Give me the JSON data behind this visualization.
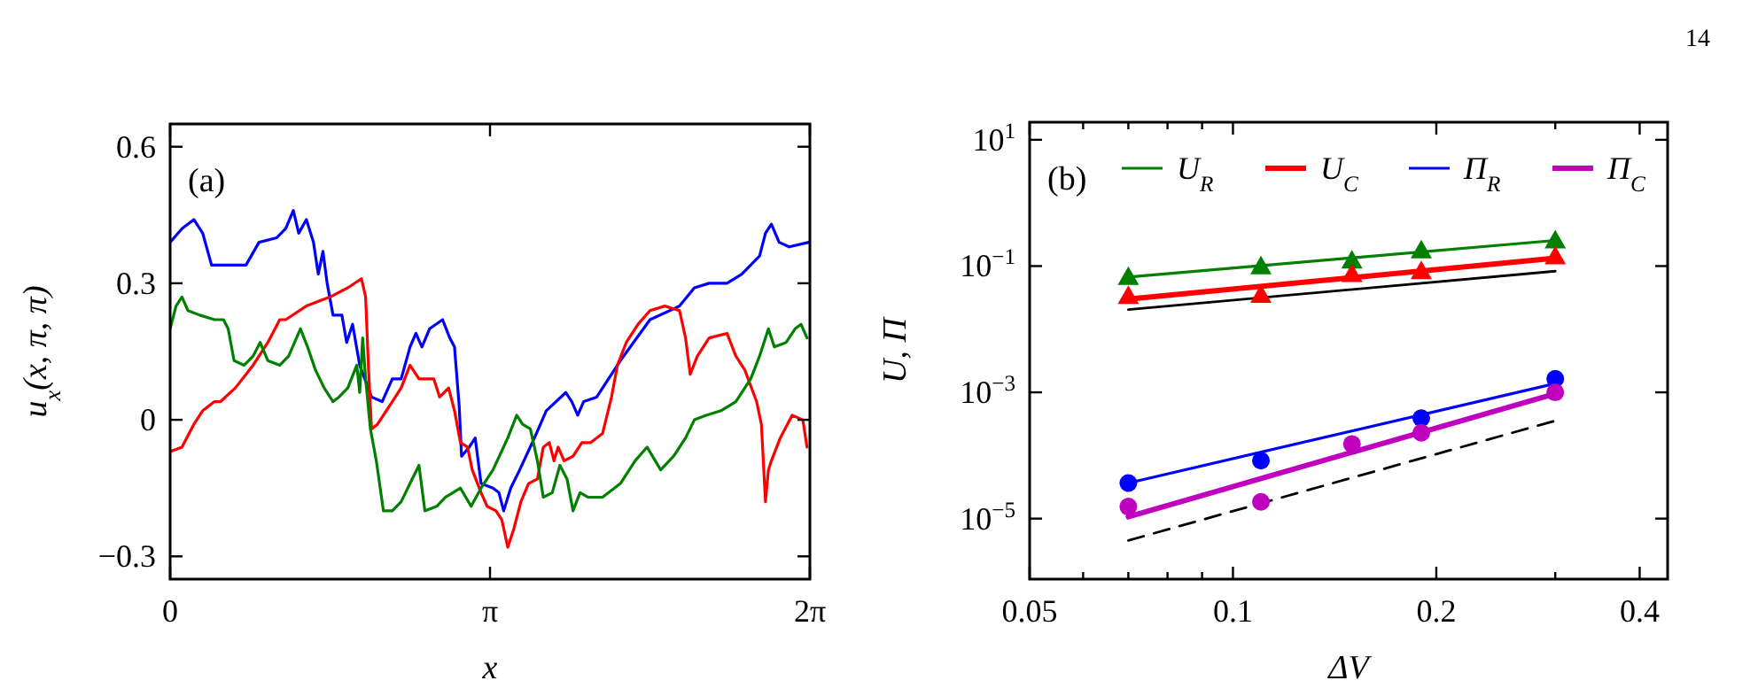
{
  "chart_data": [
    {
      "type": "line",
      "ylabel": "u$_{x}$(x, π, π)",
      "xlabel": "x",
      "annotations": [
        "(a)"
      ],
      "xlim": [
        0,
        6.2832
      ],
      "xticks": [
        {
          "value": 0,
          "label": "0"
        },
        {
          "value": 3.1416,
          "label": "π"
        },
        {
          "value": 6.2832,
          "label": "2π"
        }
      ],
      "ylim": [
        -0.35,
        0.65
      ],
      "yticks": [
        {
          "value": -0.3,
          "label": "−0.3"
        },
        0,
        0.3,
        0.6
      ],
      "series": [
        {
          "color": "#0000ff",
          "x": [
            0,
            0.116,
            0.233,
            0.32,
            0.407,
            0.64,
            0.745,
            0.873,
            1.047,
            1.135,
            1.21,
            1.263,
            1.338,
            1.408,
            1.455,
            1.501,
            1.542,
            1.6,
            1.687,
            1.734,
            1.792,
            1.862,
            1.978,
            2.083,
            2.182,
            2.269,
            2.356,
            2.414,
            2.473,
            2.548,
            2.676,
            2.746,
            2.793,
            2.839,
            2.862,
            2.938,
            2.996,
            3.054,
            3.171,
            3.229,
            3.276,
            3.345,
            3.433,
            3.578,
            3.694,
            3.886,
            3.945,
            4.003,
            4.061,
            4.189,
            4.422,
            4.713,
            5.003,
            5.149,
            5.294,
            5.469,
            5.614,
            5.789,
            5.847,
            5.905,
            5.981,
            6.08,
            6.272
          ],
          "values": [
            0.39,
            0.42,
            0.44,
            0.41,
            0.34,
            0.34,
            0.34,
            0.39,
            0.4,
            0.42,
            0.46,
            0.41,
            0.44,
            0.39,
            0.32,
            0.37,
            0.3,
            0.23,
            0.23,
            0.17,
            0.21,
            0.12,
            0.05,
            0.04,
            0.09,
            0.09,
            0.16,
            0.19,
            0.16,
            0.2,
            0.22,
            0.18,
            0.16,
            0.03,
            -0.08,
            -0.06,
            -0.04,
            -0.14,
            -0.15,
            -0.16,
            -0.2,
            -0.15,
            -0.11,
            -0.04,
            0.02,
            0.06,
            0.04,
            0.01,
            0.04,
            0.05,
            0.13,
            0.22,
            0.25,
            0.29,
            0.3,
            0.3,
            0.32,
            0.36,
            0.41,
            0.43,
            0.39,
            0.38,
            0.39
          ]
        },
        {
          "color": "#ff0000",
          "x": [
            0,
            0.116,
            0.233,
            0.32,
            0.436,
            0.495,
            0.64,
            0.815,
            0.96,
            1.077,
            1.135,
            1.338,
            1.571,
            1.745,
            1.879,
            1.92,
            1.949,
            1.978,
            2.036,
            2.182,
            2.269,
            2.356,
            2.444,
            2.531,
            2.589,
            2.647,
            2.735,
            2.793,
            2.851,
            2.921,
            2.967,
            3.054,
            3.113,
            3.2,
            3.258,
            3.316,
            3.375,
            3.445,
            3.52,
            3.607,
            3.665,
            3.724,
            3.77,
            3.811,
            3.869,
            3.957,
            4.044,
            4.131,
            4.247,
            4.335,
            4.393,
            4.48,
            4.596,
            4.713,
            4.858,
            5.003,
            5.062,
            5.108,
            5.178,
            5.294,
            5.469,
            5.556,
            5.643,
            5.76,
            5.807,
            5.847,
            5.876,
            5.905,
            5.992,
            6.109,
            6.214,
            6.255
          ],
          "values": [
            -0.07,
            -0.06,
            -0.01,
            0.02,
            0.04,
            0.04,
            0.07,
            0.12,
            0.17,
            0.22,
            0.22,
            0.25,
            0.27,
            0.29,
            0.31,
            0.27,
            0.11,
            -0.02,
            -0.01,
            0.04,
            0.07,
            0.12,
            0.09,
            0.09,
            0.09,
            0.05,
            0.07,
            0.02,
            -0.05,
            -0.06,
            -0.11,
            -0.16,
            -0.19,
            -0.2,
            -0.22,
            -0.28,
            -0.24,
            -0.18,
            -0.14,
            -0.13,
            -0.06,
            -0.05,
            -0.09,
            -0.06,
            -0.09,
            -0.08,
            -0.05,
            -0.05,
            -0.03,
            0.05,
            0.12,
            0.17,
            0.21,
            0.24,
            0.25,
            0.24,
            0.18,
            0.1,
            0.14,
            0.18,
            0.19,
            0.14,
            0.11,
            0.04,
            -0.01,
            -0.18,
            -0.11,
            -0.09,
            -0.04,
            0.01,
            0.0,
            -0.06
          ]
        },
        {
          "color": "#008000",
          "x": [
            0,
            0.058,
            0.116,
            0.175,
            0.291,
            0.436,
            0.524,
            0.57,
            0.628,
            0.727,
            0.815,
            0.884,
            0.96,
            1.077,
            1.164,
            1.28,
            1.35,
            1.426,
            1.513,
            1.6,
            1.658,
            1.745,
            1.833,
            1.862,
            1.891,
            1.92,
            1.967,
            2.025,
            2.095,
            2.182,
            2.269,
            2.356,
            2.444,
            2.502,
            2.618,
            2.705,
            2.851,
            2.956,
            3.054,
            3.171,
            3.316,
            3.404,
            3.462,
            3.538,
            3.607,
            3.665,
            3.753,
            3.828,
            3.898,
            3.957,
            4.026,
            4.102,
            4.247,
            4.422,
            4.567,
            4.684,
            4.818,
            4.945,
            5.062,
            5.149,
            5.265,
            5.41,
            5.556,
            5.702,
            5.789,
            5.876,
            5.934,
            6.05,
            6.138,
            6.196,
            6.255
          ],
          "values": [
            0.2,
            0.25,
            0.27,
            0.24,
            0.23,
            0.22,
            0.22,
            0.2,
            0.13,
            0.12,
            0.14,
            0.17,
            0.13,
            0.12,
            0.14,
            0.2,
            0.16,
            0.11,
            0.07,
            0.04,
            0.05,
            0.07,
            0.12,
            0.06,
            0.18,
            0.09,
            -0.02,
            -0.09,
            -0.2,
            -0.2,
            -0.18,
            -0.14,
            -0.1,
            -0.2,
            -0.19,
            -0.17,
            -0.15,
            -0.19,
            -0.15,
            -0.11,
            -0.04,
            0.01,
            -0.01,
            -0.02,
            -0.09,
            -0.17,
            -0.16,
            -0.1,
            -0.13,
            -0.2,
            -0.16,
            -0.17,
            -0.17,
            -0.14,
            -0.09,
            -0.06,
            -0.11,
            -0.08,
            -0.04,
            0.0,
            0.01,
            0.02,
            0.04,
            0.09,
            0.14,
            0.2,
            0.16,
            0.17,
            0.2,
            0.21,
            0.18
          ]
        }
      ]
    },
    {
      "type": "scatter",
      "ylabel": "U, Π",
      "xlabel": "ΔV",
      "log": "xy",
      "legend": "top",
      "annotations": [
        "(b)",
        "14"
      ],
      "xlim": [
        0.05,
        0.44
      ],
      "xticks": [
        0.05,
        {
          "value": 0.06,
          "label": null
        },
        {
          "value": 0.07,
          "label": null
        },
        {
          "value": 0.08,
          "label": null
        },
        {
          "value": 0.09,
          "label": null
        },
        0.1,
        0.2,
        {
          "value": 0.3,
          "label": null
        },
        0.4
      ],
      "ylim": [
        1.1e-06,
        19
      ],
      "yticks": [
        {
          "value": 10,
          "label": "10$^{1}$"
        },
        {
          "value": 0.1,
          "label": "10$^{−1}$"
        },
        {
          "value": 0.001,
          "label": "10$^{−3}$"
        },
        {
          "value": 1e-05,
          "label": "10$^{−5}$"
        }
      ],
      "series": [
        {
          "type": "line",
          "name": "U$_{R}$",
          "color": "#008000",
          "x": [
            0.07,
            0.3
          ],
          "values": [
            0.067,
            0.255
          ]
        },
        {
          "type": "line",
          "name": "U$_{C}$",
          "color": "#ff0000",
          "x": [
            0.07,
            0.3
          ],
          "values": [
            0.03,
            0.134
          ]
        },
        {
          "type": "line",
          "name": "Π$_{R}$",
          "color": "#0000ff",
          "x": [
            0.07,
            0.3
          ],
          "values": [
            3.66e-05,
            0.00138
          ]
        },
        {
          "type": "line",
          "name": "Π$_{C}$",
          "color": "#bf00bf",
          "x": [
            0.07,
            0.3
          ],
          "values": [
            1.07e-05,
            0.00095
          ]
        },
        {
          "type": "line",
          "color": "#000000",
          "x": [
            0.07,
            0.3
          ],
          "values": [
            0.0204,
            0.083
          ]
        },
        {
          "type": "line",
          "color": "#000000",
          "line_style": "dashed",
          "x": [
            0.07,
            0.3
          ],
          "values": [
            4.5e-06,
            0.000355
          ]
        },
        {
          "marker": "triangle",
          "color": "#008000",
          "x": [
            0.07,
            0.11,
            0.15,
            0.19,
            0.3
          ],
          "values": [
            0.067,
            0.099,
            0.122,
            0.177,
            0.255
          ]
        },
        {
          "marker": "triangle",
          "color": "#ff0000",
          "x": [
            0.07,
            0.11,
            0.15,
            0.19,
            0.3
          ],
          "values": [
            0.0336,
            0.035,
            0.0746,
            0.083,
            0.143
          ]
        },
        {
          "marker": "circle",
          "color": "#0000ff",
          "x": [
            0.07,
            0.11,
            0.15,
            0.19,
            0.3
          ],
          "values": [
            3.66e-05,
            8.3e-05,
            null,
            0.00039,
            0.00164
          ]
        },
        {
          "marker": "circle",
          "color": "#bf00bf",
          "x": [
            0.07,
            0.11,
            0.15,
            0.19,
            0.3
          ],
          "values": [
            1.55e-05,
            1.84e-05,
            0.000152,
            0.000229,
            0.001
          ]
        }
      ]
    }
  ]
}
